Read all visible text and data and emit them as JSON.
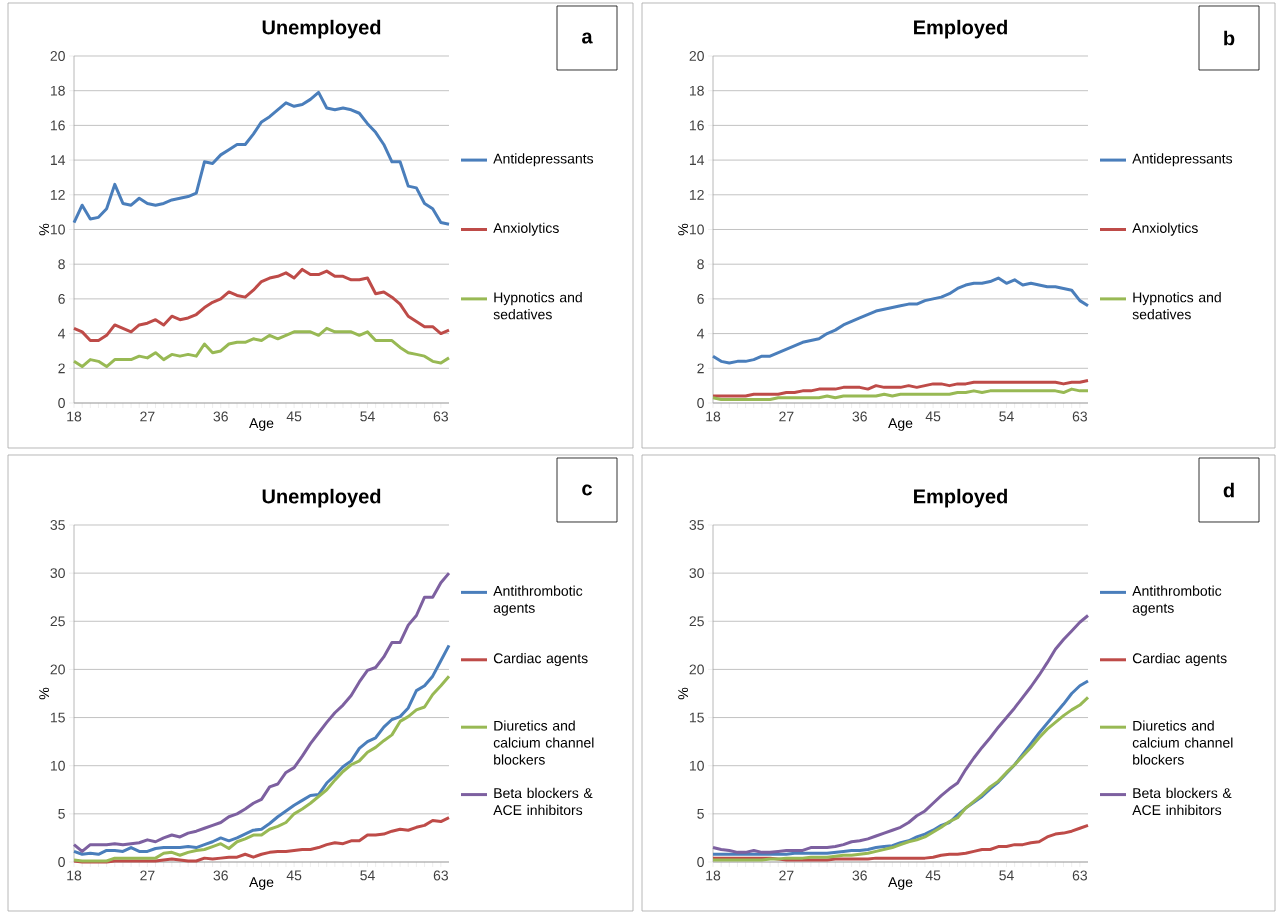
{
  "chart_data": [
    {
      "type": "line",
      "title": "Unemployed",
      "xlabel": "Age",
      "ylabel": "%",
      "annotations": [
        "a"
      ],
      "grid": "y",
      "legend": "right",
      "line_style": "solid",
      "x": [
        18,
        19,
        20,
        21,
        22,
        23,
        24,
        25,
        26,
        27,
        28,
        29,
        30,
        31,
        32,
        33,
        34,
        35,
        36,
        37,
        38,
        39,
        40,
        41,
        42,
        43,
        44,
        45,
        46,
        47,
        48,
        49,
        50,
        51,
        52,
        53,
        54,
        55,
        56,
        57,
        58,
        59,
        60,
        61,
        62,
        63,
        64
      ],
      "xlim": [
        18,
        64
      ],
      "xticks": [
        18,
        27,
        36,
        45,
        54,
        63
      ],
      "ylim": [
        0,
        20
      ],
      "yticks": [
        0,
        2,
        4,
        6,
        8,
        10,
        12,
        14,
        16,
        18,
        20
      ],
      "series": [
        {
          "name": "Antidepressants",
          "color": "#4a7ebb",
          "values": [
            10.4,
            11.4,
            10.6,
            10.7,
            11.2,
            12.6,
            11.5,
            11.4,
            11.8,
            11.5,
            11.4,
            11.5,
            11.7,
            11.8,
            11.9,
            12.1,
            13.9,
            13.8,
            14.3,
            14.6,
            14.9,
            14.9,
            15.5,
            16.2,
            16.5,
            16.9,
            17.3,
            17.1,
            17.2,
            17.5,
            17.9,
            17.0,
            16.9,
            17.0,
            16.9,
            16.7,
            16.1,
            15.6,
            14.9,
            13.9,
            13.9,
            12.5,
            12.4,
            11.5,
            11.2,
            10.4,
            10.3
          ]
        },
        {
          "name": "Anxiolytics",
          "color": "#be4b48",
          "values": [
            4.3,
            4.1,
            3.6,
            3.6,
            3.9,
            4.5,
            4.3,
            4.1,
            4.5,
            4.6,
            4.8,
            4.5,
            5.0,
            4.8,
            4.9,
            5.1,
            5.5,
            5.8,
            6.0,
            6.4,
            6.2,
            6.1,
            6.5,
            7.0,
            7.2,
            7.3,
            7.5,
            7.2,
            7.7,
            7.4,
            7.4,
            7.6,
            7.3,
            7.3,
            7.1,
            7.1,
            7.2,
            6.3,
            6.4,
            6.1,
            5.7,
            5.0,
            4.7,
            4.4,
            4.4,
            4.0,
            4.2
          ]
        },
        {
          "name": "Hypnotics and sedatives",
          "color": "#98b954",
          "values": [
            2.4,
            2.1,
            2.5,
            2.4,
            2.1,
            2.5,
            2.5,
            2.5,
            2.7,
            2.6,
            2.9,
            2.5,
            2.8,
            2.7,
            2.8,
            2.7,
            3.4,
            2.9,
            3.0,
            3.4,
            3.5,
            3.5,
            3.7,
            3.6,
            3.9,
            3.7,
            3.9,
            4.1,
            4.1,
            4.1,
            3.9,
            4.3,
            4.1,
            4.1,
            4.1,
            3.9,
            4.1,
            3.6,
            3.6,
            3.6,
            3.2,
            2.9,
            2.8,
            2.7,
            2.4,
            2.3,
            2.6
          ]
        }
      ]
    },
    {
      "type": "line",
      "title": "Employed",
      "xlabel": "Age",
      "ylabel": "%",
      "annotations": [
        "b"
      ],
      "grid": "y",
      "legend": "right",
      "line_style": "solid",
      "x": [
        18,
        19,
        20,
        21,
        22,
        23,
        24,
        25,
        26,
        27,
        28,
        29,
        30,
        31,
        32,
        33,
        34,
        35,
        36,
        37,
        38,
        39,
        40,
        41,
        42,
        43,
        44,
        45,
        46,
        47,
        48,
        49,
        50,
        51,
        52,
        53,
        54,
        55,
        56,
        57,
        58,
        59,
        60,
        61,
        62,
        63,
        64
      ],
      "xlim": [
        18,
        64
      ],
      "xticks": [
        18,
        27,
        36,
        45,
        54,
        63
      ],
      "ylim": [
        0,
        20
      ],
      "yticks": [
        0,
        2,
        4,
        6,
        8,
        10,
        12,
        14,
        16,
        18,
        20
      ],
      "series": [
        {
          "name": "Antidepressants",
          "color": "#4a7ebb",
          "values": [
            2.7,
            2.4,
            2.3,
            2.4,
            2.4,
            2.5,
            2.7,
            2.7,
            2.9,
            3.1,
            3.3,
            3.5,
            3.6,
            3.7,
            4.0,
            4.2,
            4.5,
            4.7,
            4.9,
            5.1,
            5.3,
            5.4,
            5.5,
            5.6,
            5.7,
            5.7,
            5.9,
            6.0,
            6.1,
            6.3,
            6.6,
            6.8,
            6.9,
            6.9,
            7.0,
            7.2,
            6.9,
            7.1,
            6.8,
            6.9,
            6.8,
            6.7,
            6.7,
            6.6,
            6.5,
            5.9,
            5.6
          ]
        },
        {
          "name": "Anxiolytics",
          "color": "#be4b48",
          "values": [
            0.4,
            0.4,
            0.4,
            0.4,
            0.4,
            0.5,
            0.5,
            0.5,
            0.5,
            0.6,
            0.6,
            0.7,
            0.7,
            0.8,
            0.8,
            0.8,
            0.9,
            0.9,
            0.9,
            0.8,
            1.0,
            0.9,
            0.9,
            0.9,
            1.0,
            0.9,
            1.0,
            1.1,
            1.1,
            1.0,
            1.1,
            1.1,
            1.2,
            1.2,
            1.2,
            1.2,
            1.2,
            1.2,
            1.2,
            1.2,
            1.2,
            1.2,
            1.2,
            1.1,
            1.2,
            1.2,
            1.3
          ]
        },
        {
          "name": "Hypnotics and sedatives",
          "color": "#98b954",
          "values": [
            0.3,
            0.2,
            0.2,
            0.2,
            0.2,
            0.2,
            0.2,
            0.2,
            0.3,
            0.3,
            0.3,
            0.3,
            0.3,
            0.3,
            0.4,
            0.3,
            0.4,
            0.4,
            0.4,
            0.4,
            0.4,
            0.5,
            0.4,
            0.5,
            0.5,
            0.5,
            0.5,
            0.5,
            0.5,
            0.5,
            0.6,
            0.6,
            0.7,
            0.6,
            0.7,
            0.7,
            0.7,
            0.7,
            0.7,
            0.7,
            0.7,
            0.7,
            0.7,
            0.6,
            0.8,
            0.7,
            0.7
          ]
        }
      ]
    },
    {
      "type": "line",
      "title": "Unemployed",
      "xlabel": "Age",
      "ylabel": "%",
      "annotations": [
        "c"
      ],
      "grid": "y",
      "legend": "right",
      "line_style": "solid",
      "x": [
        18,
        19,
        20,
        21,
        22,
        23,
        24,
        25,
        26,
        27,
        28,
        29,
        30,
        31,
        32,
        33,
        34,
        35,
        36,
        37,
        38,
        39,
        40,
        41,
        42,
        43,
        44,
        45,
        46,
        47,
        48,
        49,
        50,
        51,
        52,
        53,
        54,
        55,
        56,
        57,
        58,
        59,
        60,
        61,
        62,
        63,
        64
      ],
      "xlim": [
        18,
        64
      ],
      "xticks": [
        18,
        27,
        36,
        45,
        54,
        63
      ],
      "ylim": [
        0,
        35
      ],
      "yticks": [
        0,
        5,
        10,
        15,
        20,
        25,
        30,
        35
      ],
      "series": [
        {
          "name": "Antithrombotic agents",
          "color": "#4a7ebb",
          "values": [
            1.1,
            0.8,
            0.9,
            0.8,
            1.2,
            1.2,
            1.1,
            1.5,
            1.1,
            1.1,
            1.4,
            1.5,
            1.5,
            1.5,
            1.6,
            1.5,
            1.8,
            2.1,
            2.5,
            2.2,
            2.5,
            2.9,
            3.3,
            3.4,
            4.0,
            4.7,
            5.3,
            5.9,
            6.4,
            6.9,
            7.0,
            8.2,
            9.0,
            9.9,
            10.5,
            11.8,
            12.5,
            12.9,
            14.0,
            14.8,
            15.1,
            16.0,
            17.8,
            18.3,
            19.3,
            20.9,
            22.5
          ]
        },
        {
          "name": "Cardiac agents",
          "color": "#be4b48",
          "values": [
            0.1,
            0.0,
            0.0,
            0.0,
            0.0,
            0.1,
            0.1,
            0.1,
            0.1,
            0.1,
            0.1,
            0.2,
            0.3,
            0.2,
            0.1,
            0.1,
            0.4,
            0.3,
            0.4,
            0.5,
            0.5,
            0.8,
            0.5,
            0.8,
            1.0,
            1.1,
            1.1,
            1.2,
            1.3,
            1.3,
            1.5,
            1.8,
            2.0,
            1.9,
            2.2,
            2.2,
            2.8,
            2.8,
            2.9,
            3.2,
            3.4,
            3.3,
            3.6,
            3.8,
            4.3,
            4.2,
            4.6
          ]
        },
        {
          "name": "Diuretics and calcium channel blockers",
          "color": "#98b954",
          "values": [
            0.2,
            0.1,
            0.1,
            0.1,
            0.1,
            0.4,
            0.4,
            0.4,
            0.4,
            0.4,
            0.4,
            0.9,
            1.0,
            0.7,
            1.0,
            1.2,
            1.3,
            1.6,
            1.9,
            1.4,
            2.1,
            2.4,
            2.8,
            2.8,
            3.4,
            3.7,
            4.1,
            5.0,
            5.5,
            6.1,
            6.8,
            7.5,
            8.5,
            9.4,
            10.1,
            10.5,
            11.4,
            11.9,
            12.6,
            13.2,
            14.6,
            15.1,
            15.8,
            16.1,
            17.4,
            18.3,
            19.3
          ]
        },
        {
          "name": "Beta blockers & ACE inhibitors",
          "color": "#7d60a0",
          "values": [
            1.8,
            1.1,
            1.8,
            1.8,
            1.8,
            1.9,
            1.8,
            1.9,
            2.0,
            2.3,
            2.1,
            2.5,
            2.8,
            2.6,
            3.0,
            3.2,
            3.5,
            3.8,
            4.1,
            4.7,
            5.0,
            5.5,
            6.1,
            6.5,
            7.8,
            8.1,
            9.3,
            9.8,
            11.0,
            12.3,
            13.4,
            14.5,
            15.5,
            16.3,
            17.3,
            18.7,
            19.9,
            20.2,
            21.3,
            22.8,
            22.8,
            24.6,
            25.6,
            27.5,
            27.5,
            29.0,
            30.0
          ]
        }
      ]
    },
    {
      "type": "line",
      "title": "Employed",
      "xlabel": "Age",
      "ylabel": "%",
      "annotations": [
        "d"
      ],
      "grid": "y",
      "legend": "right",
      "line_style": "solid",
      "x": [
        18,
        19,
        20,
        21,
        22,
        23,
        24,
        25,
        26,
        27,
        28,
        29,
        30,
        31,
        32,
        33,
        34,
        35,
        36,
        37,
        38,
        39,
        40,
        41,
        42,
        43,
        44,
        45,
        46,
        47,
        48,
        49,
        50,
        51,
        52,
        53,
        54,
        55,
        56,
        57,
        58,
        59,
        60,
        61,
        62,
        63,
        64
      ],
      "xlim": [
        18,
        64
      ],
      "xticks": [
        18,
        27,
        36,
        45,
        54,
        63
      ],
      "ylim": [
        0,
        35
      ],
      "yticks": [
        0,
        5,
        10,
        15,
        20,
        25,
        30,
        35
      ],
      "series": [
        {
          "name": "Antithrombotic agents",
          "color": "#4a7ebb",
          "values": [
            0.8,
            0.8,
            0.8,
            0.8,
            0.8,
            0.8,
            0.8,
            0.8,
            0.8,
            0.8,
            0.9,
            0.9,
            0.9,
            0.9,
            0.9,
            1.0,
            1.1,
            1.2,
            1.2,
            1.3,
            1.5,
            1.6,
            1.7,
            2.0,
            2.2,
            2.6,
            2.9,
            3.3,
            3.8,
            4.1,
            4.9,
            5.6,
            6.2,
            6.8,
            7.6,
            8.3,
            9.2,
            10.1,
            11.2,
            12.3,
            13.4,
            14.4,
            15.4,
            16.4,
            17.5,
            18.3,
            18.8
          ]
        },
        {
          "name": "Cardiac agents",
          "color": "#be4b48",
          "values": [
            0.4,
            0.4,
            0.4,
            0.4,
            0.4,
            0.4,
            0.4,
            0.4,
            0.3,
            0.2,
            0.2,
            0.2,
            0.2,
            0.2,
            0.2,
            0.3,
            0.3,
            0.3,
            0.3,
            0.3,
            0.4,
            0.4,
            0.4,
            0.4,
            0.4,
            0.4,
            0.4,
            0.5,
            0.7,
            0.8,
            0.8,
            0.9,
            1.1,
            1.3,
            1.3,
            1.6,
            1.6,
            1.8,
            1.8,
            2.0,
            2.1,
            2.6,
            2.9,
            3.0,
            3.2,
            3.5,
            3.8
          ]
        },
        {
          "name": "Diuretics and calcium channel blockers",
          "color": "#98b954",
          "values": [
            0.2,
            0.2,
            0.2,
            0.2,
            0.2,
            0.2,
            0.2,
            0.3,
            0.3,
            0.4,
            0.4,
            0.4,
            0.5,
            0.5,
            0.5,
            0.6,
            0.7,
            0.7,
            0.8,
            0.9,
            1.1,
            1.3,
            1.5,
            1.8,
            2.1,
            2.3,
            2.6,
            3.1,
            3.6,
            4.2,
            4.6,
            5.6,
            6.3,
            7.0,
            7.8,
            8.4,
            9.3,
            10.1,
            11.0,
            11.9,
            12.9,
            13.8,
            14.5,
            15.2,
            15.8,
            16.3,
            17.1
          ]
        },
        {
          "name": "Beta blockers & ACE inhibitors",
          "color": "#7d60a0",
          "values": [
            1.5,
            1.3,
            1.2,
            1.0,
            1.0,
            1.2,
            1.0,
            1.0,
            1.1,
            1.2,
            1.2,
            1.2,
            1.5,
            1.5,
            1.5,
            1.6,
            1.8,
            2.1,
            2.2,
            2.4,
            2.7,
            3.0,
            3.3,
            3.6,
            4.1,
            4.8,
            5.3,
            6.1,
            6.9,
            7.6,
            8.2,
            9.6,
            10.8,
            11.9,
            12.9,
            14.0,
            15.0,
            16.0,
            17.1,
            18.2,
            19.4,
            20.7,
            22.1,
            23.1,
            24.0,
            24.9,
            25.6
          ]
        }
      ]
    }
  ]
}
